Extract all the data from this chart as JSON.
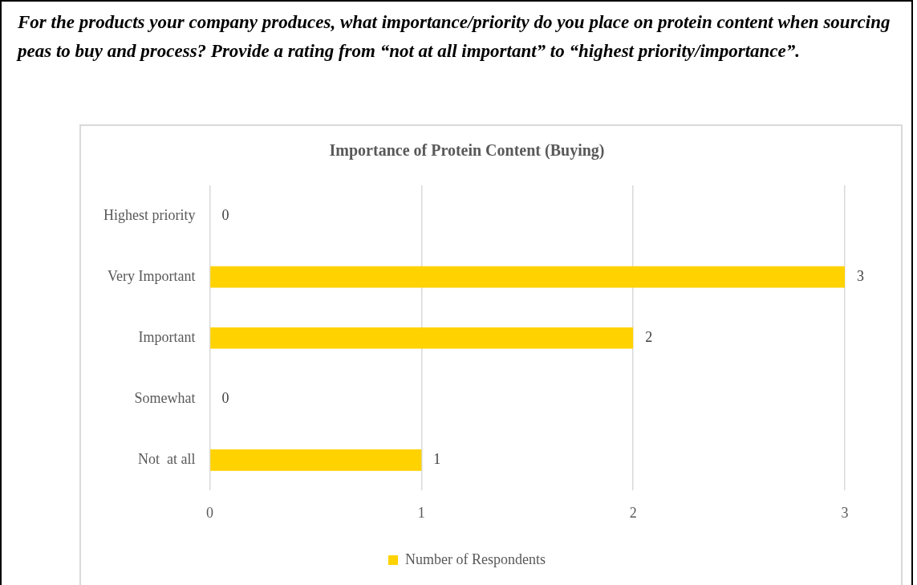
{
  "chart_data": {
    "type": "bar",
    "orientation": "horizontal",
    "title": "Importance of Protein Content (Buying)",
    "annotations": [
      "For the products your company produces, what importance/priority do you place on protein content when sourcing peas to buy and process? Provide a rating from “not at all important” to “highest priority/importance”."
    ],
    "categories": [
      "Highest priority",
      "Very Important",
      "Important",
      "Somewhat",
      "Not  at all"
    ],
    "series": [
      {
        "name": "Number of Respondents",
        "color": "#ffd200",
        "values": [
          0,
          3,
          2,
          0,
          1
        ]
      }
    ],
    "xlim": [
      0,
      3
    ],
    "xticks": [
      0,
      1,
      2,
      3
    ],
    "grid": "x",
    "legend": "bottom",
    "data_labels": true
  }
}
